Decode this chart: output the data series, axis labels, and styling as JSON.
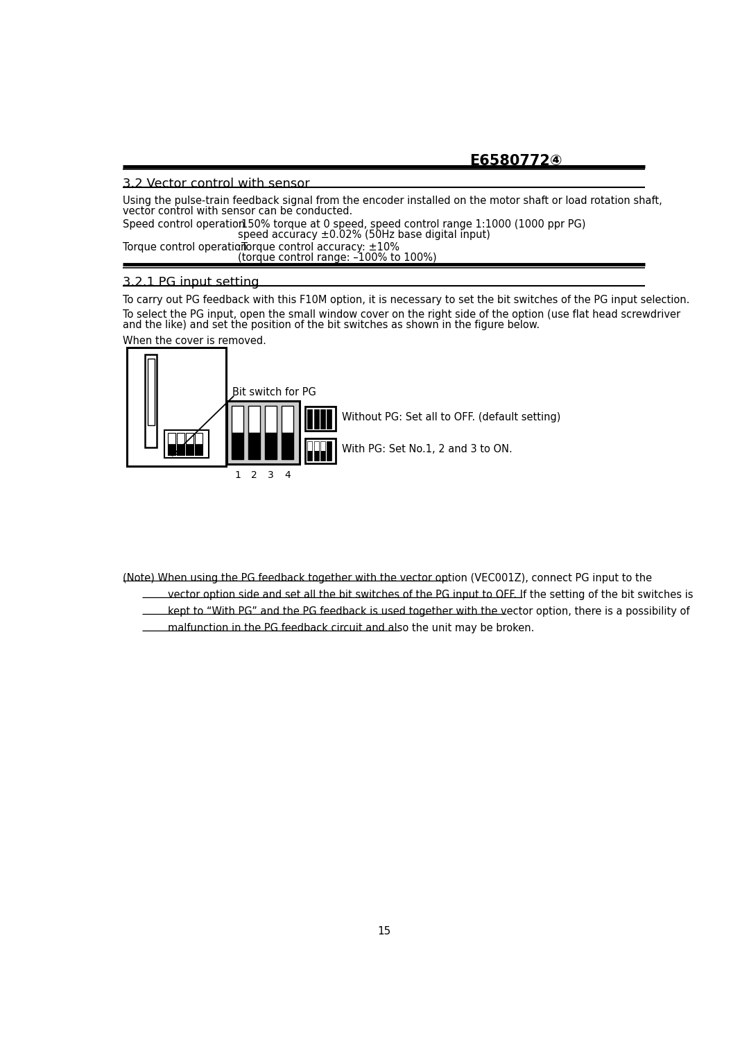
{
  "header_text": "E6580772④",
  "section1_title": "3.2 Vector control with sensor",
  "body1_line1": "Using the pulse-train feedback signal from the encoder installed on the motor shaft or load rotation shaft,",
  "body1_line2": "vector control with sensor can be conducted.",
  "speed_label": "Speed control operation",
  "speed_line1": ":150% torque at 0 speed, speed control range 1:1000 (1000 ppr PG)",
  "speed_line2": "speed accuracy ±0.02% (50Hz base digital input)",
  "torque_label": "Torque control operation",
  "torque_line1": ":Torque control accuracy: ±10%",
  "torque_line2": "(torque control range: –100% to 100%)",
  "section2_title": "3.2.1 PG input setting",
  "body2_line1": "To carry out PG feedback with this F10M option, it is necessary to set the bit switches of the PG input selection.",
  "body2_line2": "To select the PG input, open the small window cover on the right side of the option (use flat head screwdriver",
  "body2_line3": "and the like) and set the position of the bit switches as shown in the figure below.",
  "cover_text": "When the cover is removed.",
  "bit_switch_label": "Bit switch for PG",
  "without_pg": "Without PG: Set all to OFF. (default setting)",
  "with_pg": "With PG: Set No.1, 2 and 3 to ON.",
  "note1": "(Note) When using the PG feedback together with the vector option (VEC001Z), connect PG input to the",
  "note2": "        vector option side and set all the bit switches of the PG input to OFF. If the setting of the bit switches is",
  "note3": "        kept to “With PG” and the PG feedback is used together with the vector option, there is a possibility of",
  "note4": "        malfunction in the PG feedback circuit and also the unit may be broken.",
  "page": "15"
}
